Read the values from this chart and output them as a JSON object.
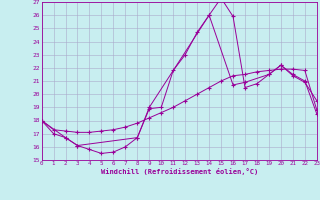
{
  "xlabel": "Windchill (Refroidissement éolien,°C)",
  "bg_color": "#c8eef0",
  "line_color": "#990099",
  "grid_color": "#aaaacc",
  "xlim": [
    0,
    23
  ],
  "ylim": [
    15,
    27
  ],
  "xticks": [
    0,
    1,
    2,
    3,
    4,
    5,
    6,
    7,
    8,
    9,
    10,
    11,
    12,
    13,
    14,
    15,
    16,
    17,
    18,
    19,
    20,
    21,
    22,
    23
  ],
  "yticks": [
    15,
    16,
    17,
    18,
    19,
    20,
    21,
    22,
    23,
    24,
    25,
    26,
    27
  ],
  "series": [
    {
      "x": [
        0,
        1,
        2,
        3,
        4,
        5,
        6,
        7,
        8,
        9,
        10,
        11,
        12,
        13,
        14,
        15,
        16,
        17,
        18,
        19,
        20,
        21,
        22,
        23
      ],
      "y": [
        18,
        17,
        16.7,
        16.1,
        15.8,
        15.5,
        15.6,
        16.0,
        16.7,
        18.9,
        19.0,
        21.8,
        23.0,
        24.7,
        26.0,
        27.3,
        25.9,
        20.5,
        20.8,
        21.5,
        22.2,
        21.5,
        21.0,
        18.5
      ]
    },
    {
      "x": [
        0,
        1,
        2,
        3,
        4,
        5,
        6,
        7,
        8,
        9,
        10,
        11,
        12,
        13,
        14,
        15,
        16,
        17,
        18,
        19,
        20,
        21,
        22,
        23
      ],
      "y": [
        18.0,
        17.3,
        17.2,
        17.1,
        17.1,
        17.2,
        17.3,
        17.5,
        17.8,
        18.2,
        18.6,
        19.0,
        19.5,
        20.0,
        20.5,
        21.0,
        21.4,
        21.5,
        21.7,
        21.8,
        21.9,
        21.9,
        21.8,
        18.8
      ]
    },
    {
      "x": [
        0,
        2,
        3,
        8,
        9,
        14,
        16,
        17,
        19,
        20,
        21,
        22,
        23
      ],
      "y": [
        18.0,
        16.7,
        16.1,
        16.7,
        19.0,
        26.0,
        20.7,
        20.9,
        21.5,
        22.2,
        21.4,
        20.9,
        19.5
      ]
    }
  ]
}
